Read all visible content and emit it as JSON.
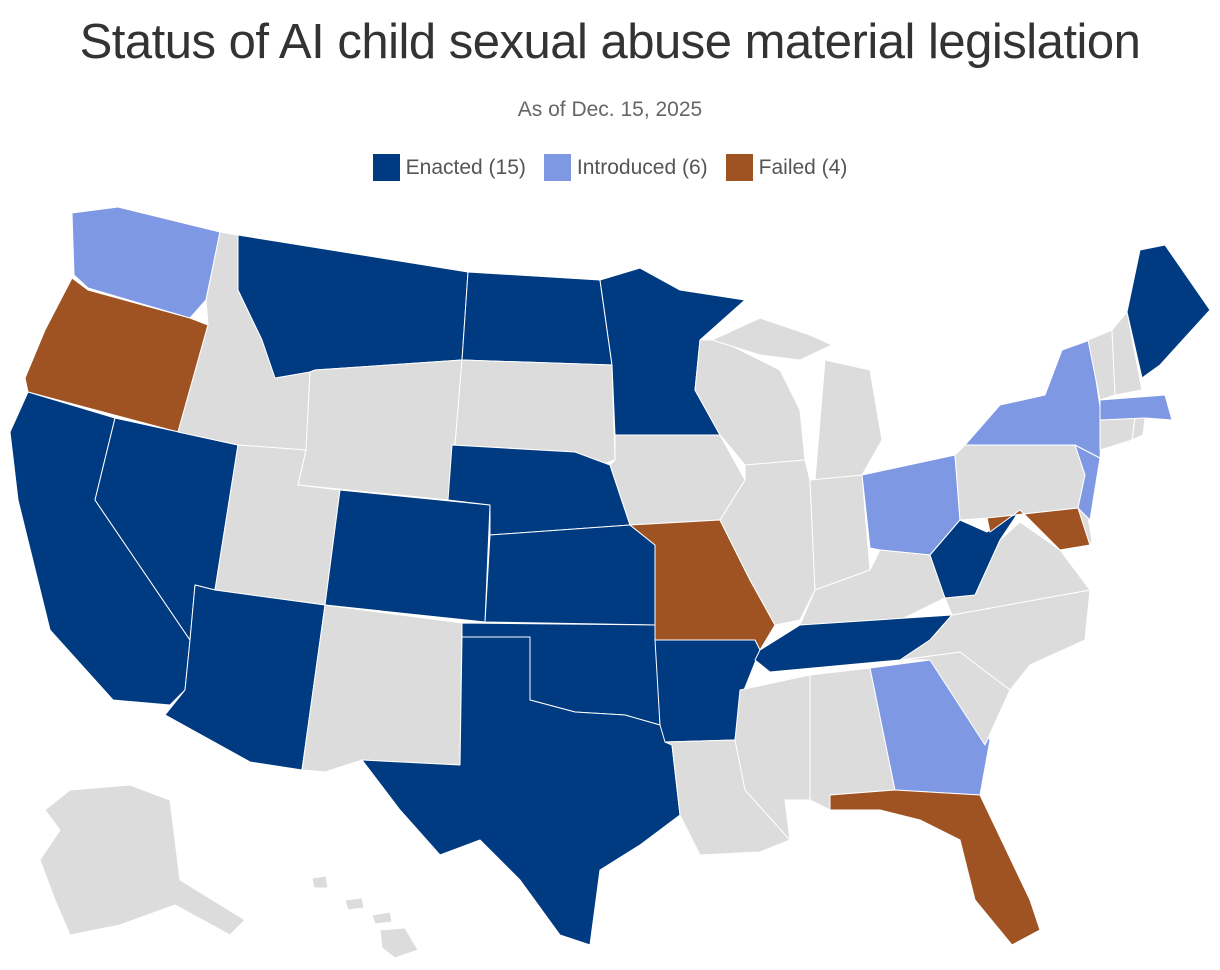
{
  "title": "Status of AI child sexual abuse material legislation",
  "subtitle": "As of Dec. 15, 2025",
  "legend": [
    {
      "key": "enacted",
      "label": "Enacted (15)",
      "color": "#003a80"
    },
    {
      "key": "introduced",
      "label": "Introduced (6)",
      "color": "#7f98e4"
    },
    {
      "key": "failed",
      "label": "Failed (4)",
      "color": "#a05322"
    }
  ],
  "none_color": "#dcdcdc",
  "states": {
    "WA": "introduced",
    "OR": "failed",
    "CA": "enacted",
    "NV": "enacted",
    "ID": "none",
    "MT": "enacted",
    "WY": "none",
    "UT": "none",
    "AZ": "enacted",
    "CO": "enacted",
    "NM": "none",
    "ND": "enacted",
    "SD": "none",
    "NE": "enacted",
    "KS": "enacted",
    "OK": "enacted",
    "TX": "enacted",
    "MN": "enacted",
    "IA": "none",
    "MO": "failed",
    "AR": "enacted",
    "LA": "none",
    "WI": "none",
    "IL": "none",
    "MI": "none",
    "IN": "none",
    "OH": "introduced",
    "KY": "none",
    "TN": "enacted",
    "MS": "none",
    "AL": "none",
    "GA": "introduced",
    "FL": "failed",
    "SC": "none",
    "NC": "none",
    "VA": "none",
    "WV": "enacted",
    "PA": "none",
    "MD": "failed",
    "DE": "none",
    "NJ": "introduced",
    "NY": "introduced",
    "CT": "none",
    "RI": "none",
    "MA": "introduced",
    "VT": "none",
    "NH": "none",
    "ME": "enacted",
    "AK": "none",
    "HI": "none"
  }
}
